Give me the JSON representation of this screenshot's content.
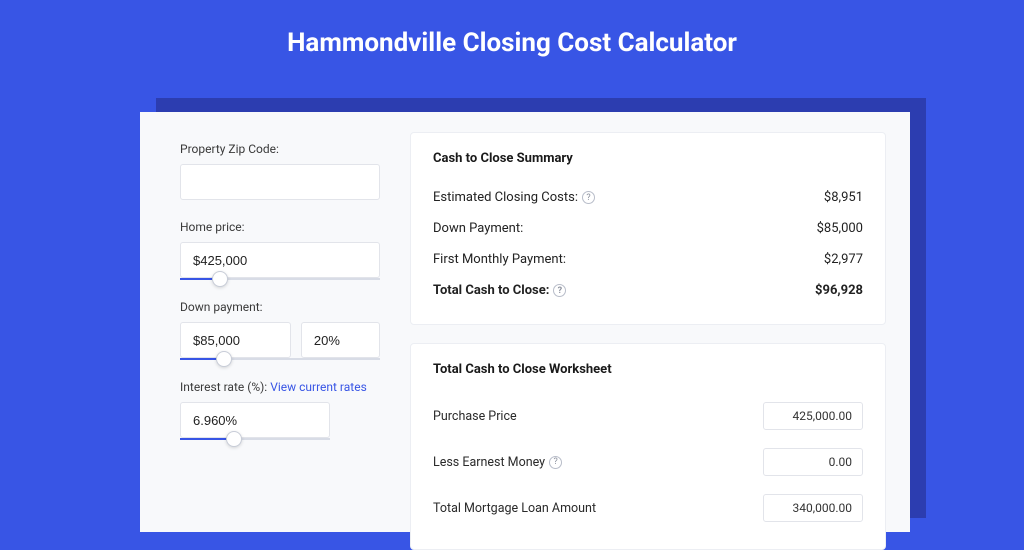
{
  "colors": {
    "page_bg": "#3855e5",
    "shadow": "#2c3db0",
    "card_bg": "#f8f9fb",
    "panel_bg": "#ffffff",
    "border": "#e2e4ea",
    "text": "#1a1a1a",
    "link": "#3855e5"
  },
  "header": {
    "title": "Hammondville Closing Cost Calculator"
  },
  "left": {
    "zip": {
      "label": "Property Zip Code:",
      "value": ""
    },
    "home_price": {
      "label": "Home price:",
      "value": "$425,000",
      "slider_pct": 20
    },
    "down_payment": {
      "label": "Down payment:",
      "amount": "$85,000",
      "pct": "20%",
      "slider_pct": 22
    },
    "interest": {
      "label": "Interest rate (%):",
      "link_text": "View current rates",
      "value": "6.960%",
      "slider_pct": 36
    }
  },
  "summary": {
    "title": "Cash to Close Summary",
    "rows": [
      {
        "label": "Estimated Closing Costs:",
        "help": true,
        "value": "$8,951",
        "bold": false
      },
      {
        "label": "Down Payment:",
        "help": false,
        "value": "$85,000",
        "bold": false
      },
      {
        "label": "First Monthly Payment:",
        "help": false,
        "value": "$2,977",
        "bold": false
      },
      {
        "label": "Total Cash to Close:",
        "help": true,
        "value": "$96,928",
        "bold": true
      }
    ]
  },
  "worksheet": {
    "title": "Total Cash to Close Worksheet",
    "rows": [
      {
        "label": "Purchase Price",
        "help": false,
        "value": "425,000.00"
      },
      {
        "label": "Less Earnest Money",
        "help": true,
        "value": "0.00"
      },
      {
        "label": "Total Mortgage Loan Amount",
        "help": false,
        "value": "340,000.00"
      }
    ]
  }
}
